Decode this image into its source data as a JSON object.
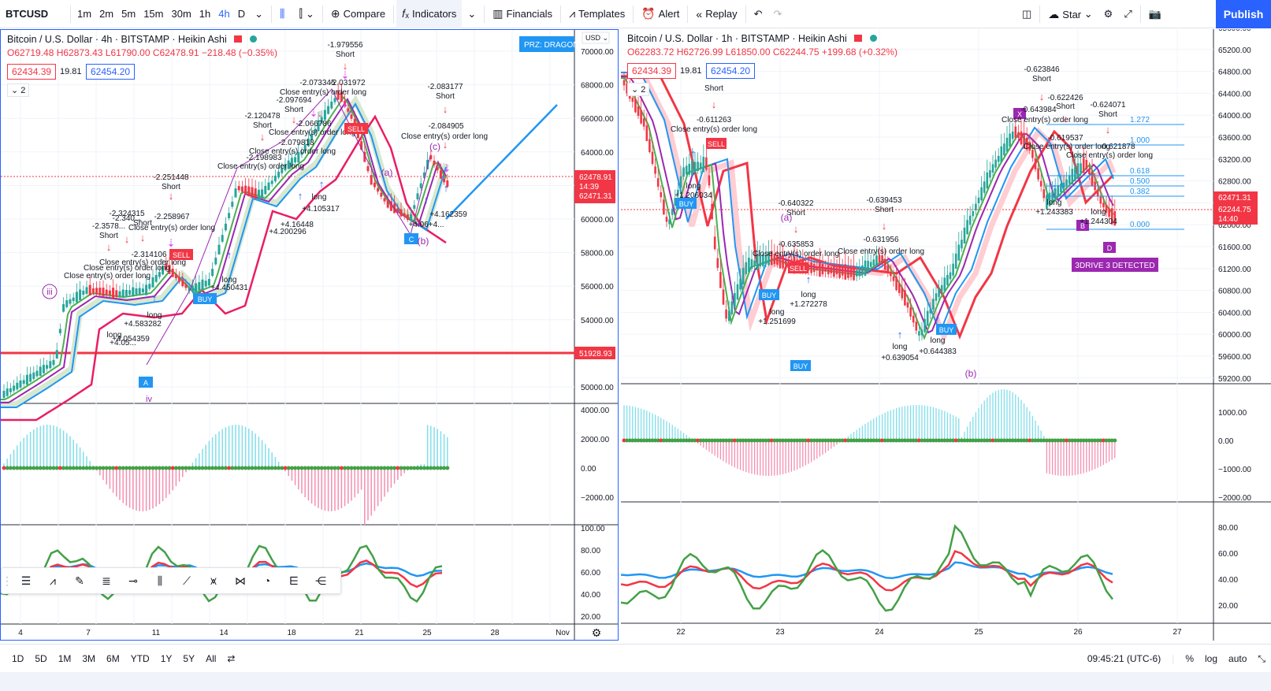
{
  "topbar": {
    "symbol": "BTCUSD",
    "timeframes": [
      "1m",
      "2m",
      "5m",
      "15m",
      "30m",
      "1h",
      "4h",
      "D"
    ],
    "active_timeframe": "4h",
    "compare": "Compare",
    "indicators": "Indicators",
    "financials": "Financials",
    "templates": "Templates",
    "alert": "Alert",
    "replay": "Replay",
    "star": "Star",
    "publish": "Publish"
  },
  "left": {
    "title": "Bitcoin / U.S. Dollar · 4h · BITSTAMP · Heikin Ashi",
    "ohlc": "O62719.48 H62873.43 L61790.00 C62478.91 −218.48 (−0.35%)",
    "bid": "62434.39",
    "spread": "19.81",
    "ask": "62454.20",
    "collapse": "2",
    "currency": "USD",
    "prz": "PRZ: DRAGON",
    "price_axis": [
      "70000.00",
      "68000.00",
      "66000.00",
      "64000.00",
      "62000.00",
      "60000.00",
      "58000.00",
      "56000.00",
      "54000.00",
      "52000.00",
      "50000.00"
    ],
    "last_price": "62478.91",
    "countdown": "14:39",
    "ma_price": "62471.31",
    "hline_price": "51928.93",
    "osc_axis": [
      "4000.00",
      "2000.00",
      "0.00",
      "−2000.00"
    ],
    "rsi_axis": [
      "100.00",
      "80.00",
      "60.00",
      "40.00",
      "20.00"
    ],
    "time_axis": [
      "4",
      "7",
      "11",
      "14",
      "18",
      "21",
      "25",
      "28",
      "Nov"
    ],
    "annotations": [
      {
        "t": "-1.979556"
      },
      {
        "t": "Short"
      },
      {
        "t": "-2.073345"
      },
      {
        "t": "-2.031972"
      },
      {
        "t": "Close entry(s) order long"
      },
      {
        "t": "-2.097694"
      },
      {
        "t": "Short"
      },
      {
        "t": "-2.120478"
      },
      {
        "t": "Short"
      },
      {
        "t": "-2.066786"
      },
      {
        "t": "Close entry(s) order long"
      },
      {
        "t": "-2.079818"
      },
      {
        "t": "Close entry(s) order long"
      },
      {
        "t": "-2.198983"
      },
      {
        "t": "Close entry(s) order long"
      },
      {
        "t": "-2.251448"
      },
      {
        "t": "Short"
      },
      {
        "t": "-2.324315"
      },
      {
        "t": "-2.258967"
      },
      {
        "t": "-2.340..."
      },
      {
        "t": "Short"
      },
      {
        "t": "-2.3578..."
      },
      {
        "t": "Close entry(s) order long"
      },
      {
        "t": "Short"
      },
      {
        "t": "-2.314106"
      },
      {
        "t": "Close entry(s) order long"
      },
      {
        "t": "Close entry(s) order long"
      },
      {
        "t": "Close entry(s) order long"
      },
      {
        "t": "-2.083177"
      },
      {
        "t": "Short"
      },
      {
        "t": "-2.084905"
      },
      {
        "t": "Close entry(s) order long"
      },
      {
        "t": "long"
      },
      {
        "t": "+4.16448"
      },
      {
        "t": "+4.105317"
      },
      {
        "t": "+4.200296"
      },
      {
        "t": "long"
      },
      {
        "t": "+4.450431"
      },
      {
        "t": "long"
      },
      {
        "t": "+4.583282"
      },
      {
        "t": "+4.05..."
      },
      {
        "t": "+4.054359"
      },
      {
        "t": "long"
      },
      {
        "t": "+4.162359"
      },
      {
        "t": "+4.06+4..."
      }
    ],
    "labels": {
      "sell": "SELL",
      "buy": "BUY",
      "a": "A",
      "c": "C",
      "iii": "iii",
      "iv": "iv",
      "ca": "(a)",
      "cc": "(c)",
      "cb": "(b)"
    }
  },
  "right": {
    "title": "Bitcoin / U.S. Dollar · 1h · BITSTAMP · Heikin Ashi",
    "ohlc": "O62283.72 H62726.99 L61850.00 C62244.75 +199.68 (+0.32%)",
    "bid": "62434.39",
    "spread": "19.81",
    "ask": "62454.20",
    "collapse": "2",
    "price_axis": [
      "65600.00",
      "65200.00",
      "64800.00",
      "64400.00",
      "64000.00",
      "63600.00",
      "63200.00",
      "62800.00",
      "62400.00",
      "62000.00",
      "61600.00",
      "61200.00",
      "60800.00",
      "60400.00",
      "60000.00",
      "59600.00",
      "59200.00"
    ],
    "ma_price": "62471.31",
    "last_price": "62244.75",
    "countdown": "14:40",
    "osc_axis": [
      "1000.00",
      "0.00",
      "−1000.00",
      "−2000.00"
    ],
    "rsi_axis": [
      "80.00",
      "60.00",
      "40.00",
      "20.00"
    ],
    "time_axis": [
      "22",
      "23",
      "24",
      "25",
      "26",
      "27"
    ],
    "fib": [
      "1.272",
      "1.000",
      "0.618",
      "0.500",
      "0.382",
      "0.000"
    ],
    "drive_label": "3DRIVE 3 DETECTED",
    "annotations": [
      {
        "t": "Short"
      },
      {
        "t": "-0.611263"
      },
      {
        "t": "Close entry(s) order long"
      },
      {
        "t": "long"
      },
      {
        "t": "+1.206034"
      },
      {
        "t": "-0.640322"
      },
      {
        "t": "Short"
      },
      {
        "t": "-0.639453"
      },
      {
        "t": "Short"
      },
      {
        "t": "-0.635853"
      },
      {
        "t": "-0.631956"
      },
      {
        "t": "Close entry(s) order long"
      },
      {
        "t": "Close entry(s) order long"
      },
      {
        "t": "long"
      },
      {
        "t": "+1.272278"
      },
      {
        "t": "long"
      },
      {
        "t": "+1.251699"
      },
      {
        "t": "long"
      },
      {
        "t": "+0.639054"
      },
      {
        "t": "long"
      },
      {
        "t": "+0.644383"
      },
      {
        "t": "-0.623846"
      },
      {
        "t": "Short"
      },
      {
        "t": "-0.622426"
      },
      {
        "t": "-0.643984"
      },
      {
        "t": "Short"
      },
      {
        "t": "-0.624071"
      },
      {
        "t": "Short"
      },
      {
        "t": "Close entry(s) order long"
      },
      {
        "t": "-0.619537"
      },
      {
        "t": "Close entry(s) order long"
      },
      {
        "t": "-0.621878"
      },
      {
        "t": "Close entry(s) order long"
      },
      {
        "t": "long"
      },
      {
        "t": "+1.243383"
      },
      {
        "t": "long"
      },
      {
        "t": "+1.244304"
      }
    ],
    "labels": {
      "buy": "BUY",
      "sell": "SELL",
      "a": "(a)",
      "b": "(b)",
      "x": "X",
      "d": "D",
      "b2": "B"
    }
  },
  "bottombar": {
    "ranges": [
      "1D",
      "5D",
      "1M",
      "3M",
      "6M",
      "YTD",
      "1Y",
      "5Y",
      "All"
    ],
    "time": "09:45:21 (UTC-6)",
    "pct": "%",
    "log": "log",
    "auto": "auto"
  },
  "colors": {
    "accent": "#2962ff",
    "red": "#f23645",
    "green": "#26a69a",
    "purple": "#9c27b0",
    "magenta": "#e040fb",
    "cyan": "#00bcd4"
  }
}
